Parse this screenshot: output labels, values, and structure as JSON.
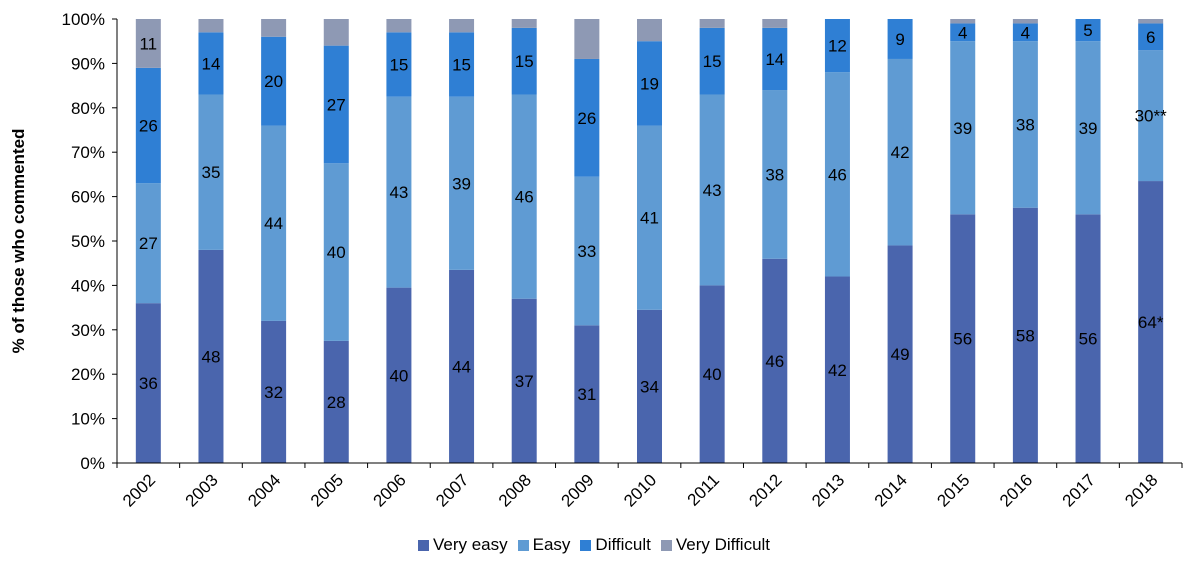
{
  "chart_data": {
    "type": "bar",
    "stacked": true,
    "ylabel": "% of those who commented",
    "ylim": [
      0,
      100
    ],
    "yticks": [
      "0%",
      "10%",
      "20%",
      "30%",
      "40%",
      "50%",
      "60%",
      "70%",
      "80%",
      "90%",
      "100%"
    ],
    "categories": [
      "2002",
      "2003",
      "2004",
      "2005",
      "2006",
      "2007",
      "2008",
      "2009",
      "2010",
      "2011",
      "2012",
      "2013",
      "2014",
      "2015",
      "2016",
      "2017",
      "2018"
    ],
    "series": [
      {
        "name": "Very easy",
        "color": "#4a65ad",
        "values": [
          36,
          48,
          32,
          27.5,
          39.5,
          43.5,
          37,
          31,
          34.5,
          40,
          46,
          42,
          49,
          56,
          57.5,
          56,
          63.5
        ],
        "labels": [
          "36",
          "48",
          "32",
          "28",
          "40",
          "44",
          "37",
          "31",
          "34",
          "40",
          "46",
          "42",
          "49",
          "56",
          "58",
          "56",
          "64*"
        ]
      },
      {
        "name": "Easy",
        "color": "#5f9bd3",
        "values": [
          27,
          35,
          44,
          40,
          43,
          39,
          46,
          33.5,
          41.5,
          43,
          38,
          46,
          42,
          39,
          37.5,
          39,
          29.5
        ],
        "labels": [
          "27",
          "35",
          "44",
          "40",
          "43",
          "39",
          "46",
          "33",
          "41",
          "43",
          "38",
          "46",
          "42",
          "39",
          "38",
          "39",
          "30**"
        ]
      },
      {
        "name": "Difficult",
        "color": "#2f7fd4",
        "values": [
          26,
          14,
          20,
          26.5,
          14.5,
          14.5,
          15,
          26.5,
          19,
          15,
          14,
          12,
          9,
          4,
          4,
          5,
          6
        ],
        "labels": [
          "26",
          "14",
          "20",
          "27",
          "15",
          "15",
          "15",
          "26",
          "19",
          "15",
          "14",
          "12",
          "9",
          "4",
          "4",
          "5",
          "6"
        ]
      },
      {
        "name": "Very Difficult",
        "color": "#8e99b4",
        "values": [
          11,
          3,
          4,
          6,
          3,
          3,
          2,
          9,
          5,
          2,
          2,
          0,
          0,
          1,
          1,
          0,
          1
        ],
        "labels": [
          "11",
          "",
          "",
          "",
          "",
          "",
          "",
          "",
          "",
          "",
          "",
          "",
          "",
          "",
          "",
          "",
          ""
        ]
      }
    ],
    "legend": "bottom"
  }
}
